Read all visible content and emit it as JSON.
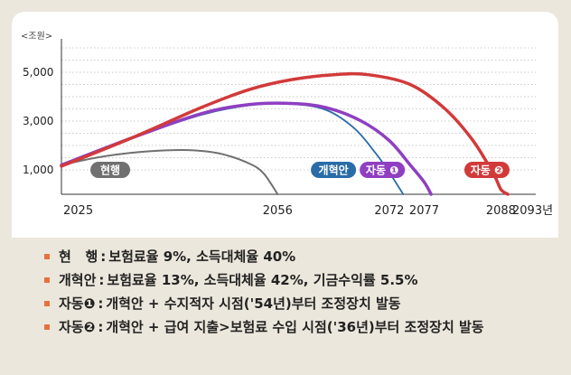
{
  "chart_data": {
    "type": "line",
    "unit_label": "<조원>",
    "y_ticks": [
      1000,
      3000,
      5000
    ],
    "y_tick_labels": [
      "1,000",
      "3,000",
      "5,000"
    ],
    "ylim": [
      0,
      6000
    ],
    "x_tick_labels": [
      "2025",
      "2056",
      "2072",
      "2077",
      "2088",
      "2093년"
    ],
    "x_ticks": [
      2025,
      2056,
      2072,
      2077,
      2088,
      2093
    ],
    "xlim": [
      2025,
      2093
    ],
    "grid": "horizontal-dotted",
    "series": [
      {
        "name": "현행",
        "color": "#707070",
        "label_x": 2032,
        "label_y": 1000,
        "points": [
          [
            2025,
            1200
          ],
          [
            2030,
            1500
          ],
          [
            2035,
            1700
          ],
          [
            2040,
            1800
          ],
          [
            2044,
            1800
          ],
          [
            2048,
            1650
          ],
          [
            2052,
            1250
          ],
          [
            2054,
            850
          ],
          [
            2056,
            0
          ]
        ]
      },
      {
        "name": "개혁안",
        "color": "#2a6ca8",
        "label_x": 2064,
        "label_y": 1000,
        "points": [
          [
            2025,
            1200
          ],
          [
            2035,
            2300
          ],
          [
            2045,
            3250
          ],
          [
            2052,
            3650
          ],
          [
            2058,
            3700
          ],
          [
            2063,
            3450
          ],
          [
            2067,
            2700
          ],
          [
            2070,
            1700
          ],
          [
            2072,
            900
          ],
          [
            2074,
            0
          ]
        ]
      },
      {
        "name": "자동 ❶",
        "color": "#8f3fc2",
        "label_x": 2071,
        "label_y": 1000,
        "points": [
          [
            2025,
            1200
          ],
          [
            2035,
            2300
          ],
          [
            2045,
            3300
          ],
          [
            2052,
            3680
          ],
          [
            2058,
            3720
          ],
          [
            2063,
            3550
          ],
          [
            2068,
            3000
          ],
          [
            2072,
            2200
          ],
          [
            2075,
            1200
          ],
          [
            2077,
            500
          ],
          [
            2078,
            0
          ]
        ]
      },
      {
        "name": "자동 ❷",
        "color": "#d23a3a",
        "label_x": 2086,
        "label_y": 1000,
        "points": [
          [
            2025,
            1150
          ],
          [
            2035,
            2300
          ],
          [
            2045,
            3550
          ],
          [
            2052,
            4300
          ],
          [
            2058,
            4700
          ],
          [
            2064,
            4900
          ],
          [
            2069,
            4900
          ],
          [
            2075,
            4500
          ],
          [
            2080,
            3500
          ],
          [
            2084,
            2200
          ],
          [
            2087,
            800
          ],
          [
            2088,
            200
          ],
          [
            2089,
            0
          ]
        ]
      }
    ]
  },
  "legend": [
    {
      "key": "현   행",
      "desc": "보험료율 9%, 소득대체율 40%"
    },
    {
      "key": "개혁안",
      "desc": "보험료율 13%, 소득대체율 42%, 기금수익률 5.5%"
    },
    {
      "key": "자동❶",
      "desc": "개혁안 + 수지적자 시점('54년)부터 조정장치 발동"
    },
    {
      "key": "자동❷",
      "desc": "개혁안 + 급여 지출>보험료 수입 시점('36년)부터 조정장치 발동"
    }
  ]
}
